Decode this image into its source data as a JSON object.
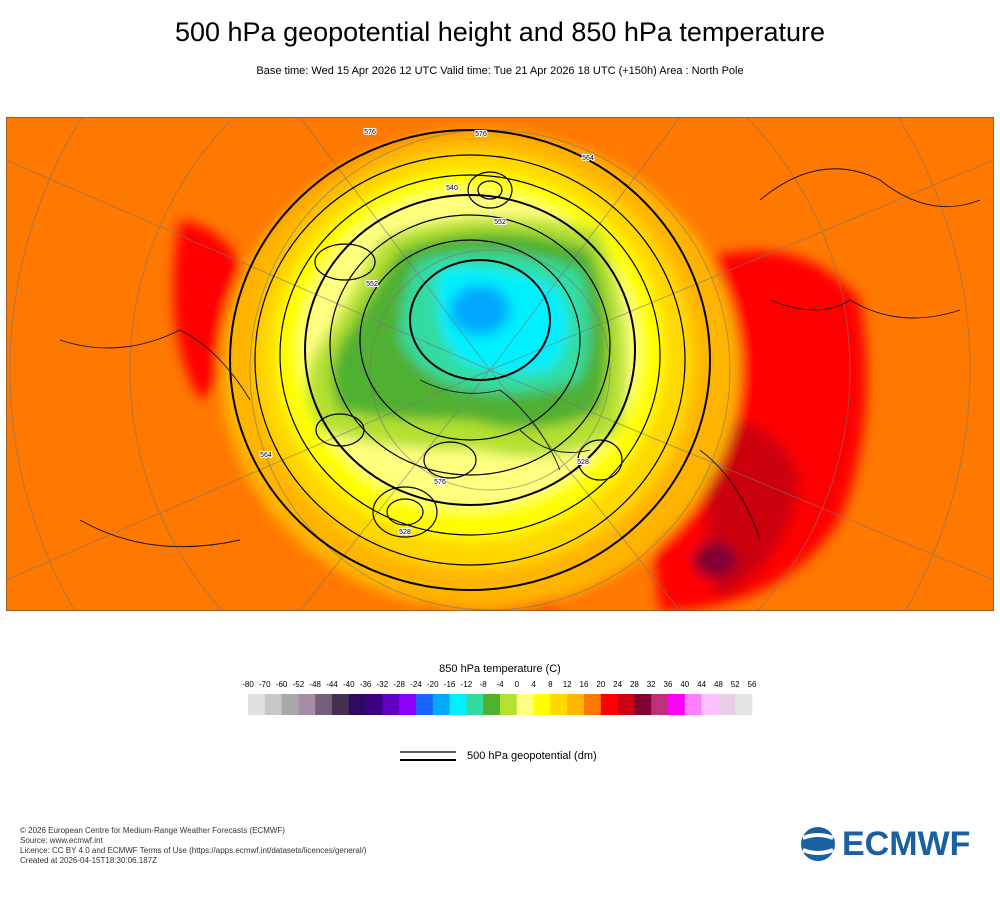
{
  "header": {
    "title": "500 hPa geopotential height and 850 hPa temperature",
    "subtitle": "Base time: Wed 15 Apr 2026 12 UTC Valid time: Tue 21 Apr 2026 18 UTC (+150h) Area : North Pole"
  },
  "map": {
    "contour_labels": [
      "576",
      "552",
      "528",
      "564",
      "540",
      "552",
      "576",
      "528",
      "564",
      "576"
    ]
  },
  "colorbar": {
    "title": "850 hPa temperature (C)",
    "ticks": [
      -80,
      -70,
      -60,
      -52,
      -48,
      -44,
      -40,
      -36,
      -32,
      -28,
      -24,
      -20,
      -16,
      -12,
      -8,
      -4,
      0,
      4,
      8,
      12,
      16,
      20,
      24,
      28,
      32,
      36,
      40,
      44,
      48,
      52,
      56
    ],
    "colors": [
      "#e1e1e1",
      "#c8c8c8",
      "#a9a9a9",
      "#a68ca6",
      "#735f78",
      "#45304f",
      "#2c0a60",
      "#3d0080",
      "#6000c0",
      "#8c00ff",
      "#1c64ff",
      "#00a8ff",
      "#00f0ff",
      "#30dca0",
      "#4fb030",
      "#b4e032",
      "#ffff80",
      "#ffff00",
      "#ffd800",
      "#ffb400",
      "#ff7800",
      "#ff0000",
      "#cc0010",
      "#800030",
      "#c03078",
      "#ff00ff",
      "#ff80ff",
      "#ffc0ff",
      "#e8d0e8",
      "#e4e4e4"
    ]
  },
  "line_legend": {
    "label": "500 hPa geopotential (dm)"
  },
  "footer": {
    "lines": [
      "© 2026 European Centre for Medium-Range Weather Forecasts (ECMWF)",
      "Source: www.ecmwf.int",
      "Licence: CC BY 4.0 and ECMWF Terms of Use (https://apps.ecmwf.int/datasets/licences/general/)",
      "Created at 2026-04-15T18:30:06.187Z"
    ]
  },
  "logo": {
    "text": "ECMWF"
  }
}
